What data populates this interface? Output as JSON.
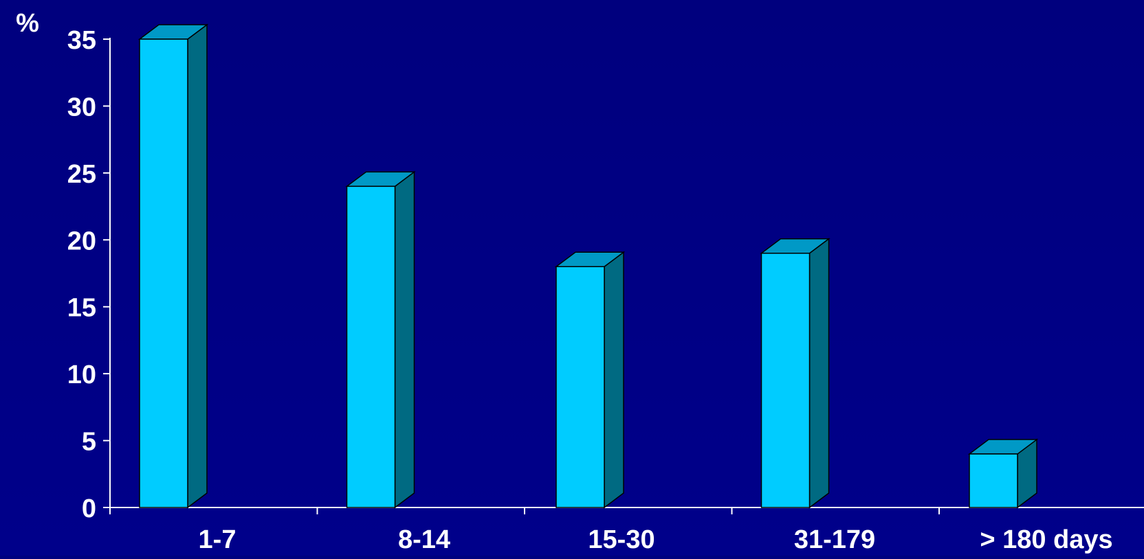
{
  "colors": {
    "background": "#000080",
    "axis": "#ffffff",
    "bar_front": "#00ccff",
    "bar_top": "#0099c6",
    "bar_side": "#006a82",
    "bar_outline": "#000000",
    "text": "#ffffff"
  },
  "chart_data": {
    "type": "bar",
    "style": "3d-column",
    "title": "",
    "ylabel": "%",
    "xlabel": "",
    "categories": [
      "1-7",
      "8-14",
      "15-30",
      "31-179",
      "> 180 days"
    ],
    "series": [
      {
        "values": [
          35,
          24,
          18,
          19,
          4
        ]
      }
    ],
    "ylim": [
      0,
      35
    ],
    "yticks": [
      0,
      5,
      10,
      15,
      20,
      25,
      30,
      35
    ],
    "ytick_labels": [
      "0",
      "5",
      "10",
      "15",
      "20",
      "25",
      "30",
      "35"
    ],
    "grid": false,
    "legend": "none"
  }
}
